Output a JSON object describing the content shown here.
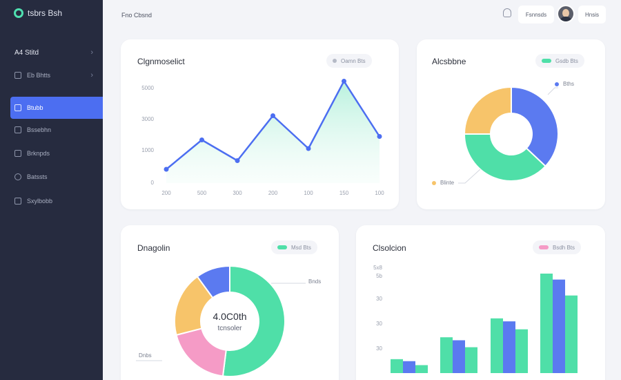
{
  "app": {
    "name": "tsbrs Bsh"
  },
  "sidebar": {
    "items": [
      {
        "label": "A4 Stitd",
        "head": true,
        "chevron": true
      },
      {
        "label": "Eb Bhtts",
        "head": false,
        "chevron": true
      },
      {
        "label": "Btubb",
        "active": true
      },
      {
        "label": "Bssebhn"
      },
      {
        "label": "Brknpds"
      },
      {
        "label": "Batssts"
      },
      {
        "label": "Sxylbobb"
      }
    ]
  },
  "topbar": {
    "title": "Fno Cbsnd",
    "chip_label": "Fsnnsds",
    "user_label": "Hnsis"
  },
  "cards": {
    "line": {
      "title": "Clgnmoselict",
      "pill": "Oamn Bts"
    },
    "donut_top": {
      "title": "Alcsbbne",
      "pill": "Gsdb Bts",
      "legend": [
        "Bths",
        "Blinte"
      ]
    },
    "donut_bottom": {
      "title": "Dnagolin",
      "pill": "Msd Bts",
      "center_value": "4.0C0th",
      "center_label": "tcnsoler",
      "callouts": [
        "Bnds",
        "Dnbs"
      ]
    },
    "bar": {
      "title": "Clsolcion",
      "pill": "Bsdh Bts"
    }
  },
  "colors": {
    "accent": "#4c6ef1",
    "green": "#4fdfa8",
    "blue": "#5b7af0",
    "yellow": "#f7c46a",
    "pink": "#f59bc6",
    "sidebar": "#262b3f"
  },
  "chart_data": [
    {
      "type": "line",
      "title": "Clgnmoselict",
      "y_ticks": [
        "5000",
        "3000",
        "1000",
        "0"
      ],
      "x_ticks": [
        "200",
        "500",
        "300",
        "200",
        "100",
        "150",
        "100"
      ],
      "ylim": [
        0,
        6000
      ],
      "series": [
        {
          "values": [
            800,
            2500,
            1300,
            3900,
            2000,
            5900,
            2700
          ]
        }
      ]
    },
    {
      "type": "pie",
      "title": "Alcsbbne",
      "slices": [
        {
          "label": "Bths",
          "value": 37,
          "color": "#5b7af0"
        },
        {
          "label": "",
          "value": 38,
          "color": "#4fdfa8"
        },
        {
          "label": "Blinte",
          "value": 25,
          "color": "#f7c46a"
        }
      ]
    },
    {
      "type": "pie",
      "title": "Dnagolin",
      "slices": [
        {
          "label": "",
          "value": 52,
          "color": "#4fdfa8"
        },
        {
          "label": "",
          "value": 19,
          "color": "#f59bc6"
        },
        {
          "label": "",
          "value": 19,
          "color": "#f7c46a"
        },
        {
          "label": "",
          "value": 10,
          "color": "#5b7af0"
        }
      ]
    },
    {
      "type": "bar",
      "title": "Clsolcion",
      "y_ticks": [
        "5x8",
        "5b",
        "30",
        "30",
        "30"
      ],
      "ylim": [
        0,
        100
      ],
      "series": [
        {
          "values": [
            14,
            36,
            55,
            100
          ],
          "color": "#4fdfa8"
        },
        {
          "values": [
            12,
            33,
            52,
            94
          ],
          "color": "#5b7af0"
        },
        {
          "values": [
            8,
            26,
            44,
            78
          ],
          "color": "#4fdfa8"
        }
      ]
    }
  ]
}
